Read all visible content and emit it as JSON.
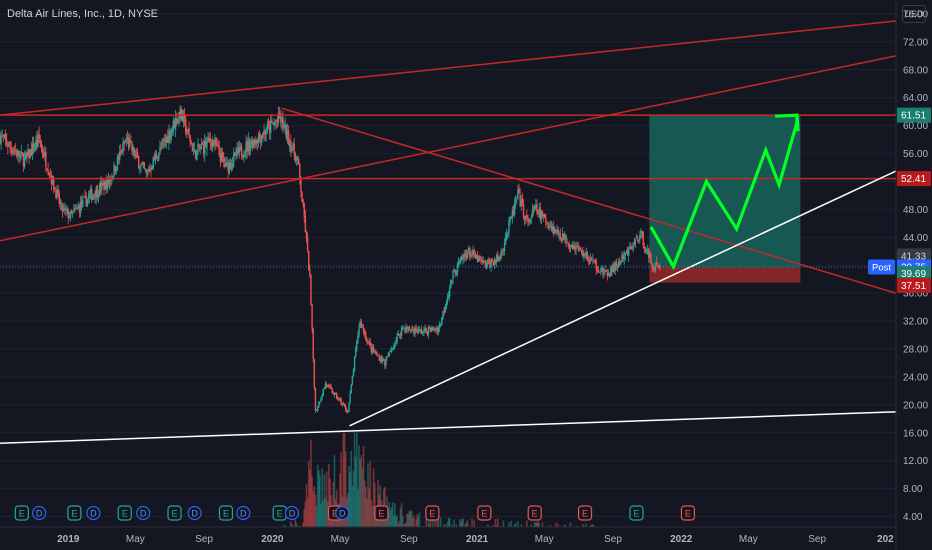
{
  "header": {
    "title": "Delta Air Lines, Inc., 1D, NYSE",
    "currency": "USD"
  },
  "colors": {
    "background": "#141722",
    "grid": "#1e2230",
    "candle_up": "#26a69a",
    "candle_down": "#ef5350",
    "trendline_red": "#c62828",
    "trendline_white": "#ffffff",
    "projection": "#00ff22",
    "target_zone": "#1a6f63",
    "stop_zone": "#9e2a2b",
    "post_label": "#2962ff"
  },
  "chart_data": {
    "type": "candlestick",
    "title": "Delta Air Lines, Inc., 1D, NYSE",
    "y_axis": {
      "ticks": [
        "76.00",
        "72.00",
        "68.00",
        "64.00",
        "60.00",
        "56.00",
        "52.00",
        "48.00",
        "44.00",
        "40.00",
        "36.00",
        "32.00",
        "28.00",
        "24.00",
        "20.00",
        "16.00",
        "12.00",
        "8.00",
        "4.00"
      ],
      "range": [
        2.5,
        78
      ]
    },
    "x_axis": {
      "ticks": [
        "2019",
        "May",
        "Sep",
        "2020",
        "May",
        "Sep",
        "2021",
        "May",
        "Sep",
        "2022",
        "May",
        "Sep",
        "202"
      ],
      "range": [
        "2018-09-01",
        "2023-01-20"
      ]
    },
    "price_path": [
      [
        "2018-09-01",
        58.5
      ],
      [
        "2018-10-15",
        55
      ],
      [
        "2018-11-10",
        58
      ],
      [
        "2018-12-20",
        48
      ],
      [
        "2019-01-05",
        47
      ],
      [
        "2019-02-10",
        50
      ],
      [
        "2019-03-15",
        52
      ],
      [
        "2019-04-15",
        58
      ],
      [
        "2019-05-20",
        53
      ],
      [
        "2019-06-25",
        58
      ],
      [
        "2019-07-20",
        62
      ],
      [
        "2019-08-15",
        56
      ],
      [
        "2019-09-15",
        58
      ],
      [
        "2019-10-10",
        54
      ],
      [
        "2019-11-01",
        56
      ],
      [
        "2019-12-01",
        58
      ],
      [
        "2020-01-15",
        61
      ],
      [
        "2020-02-15",
        55
      ],
      [
        "2020-02-28",
        46
      ],
      [
        "2020-03-08",
        38
      ],
      [
        "2020-03-18",
        19
      ],
      [
        "2020-04-05",
        23
      ],
      [
        "2020-05-01",
        20.5
      ],
      [
        "2020-05-15",
        19
      ],
      [
        "2020-06-05",
        32
      ],
      [
        "2020-06-25",
        28
      ],
      [
        "2020-07-20",
        26
      ],
      [
        "2020-08-20",
        31
      ],
      [
        "2020-09-25",
        30.5
      ],
      [
        "2020-10-25",
        31
      ],
      [
        "2020-11-20",
        39
      ],
      [
        "2020-12-15",
        42
      ],
      [
        "2021-01-15",
        40
      ],
      [
        "2021-02-10",
        41
      ],
      [
        "2021-03-15",
        50
      ],
      [
        "2021-04-01",
        46
      ],
      [
        "2021-04-15",
        48
      ],
      [
        "2021-05-20",
        45
      ],
      [
        "2021-06-20",
        43
      ],
      [
        "2021-07-20",
        41
      ],
      [
        "2021-08-20",
        38.5
      ],
      [
        "2021-09-20",
        41
      ],
      [
        "2021-10-20",
        44.5
      ],
      [
        "2021-11-10",
        40
      ],
      [
        "2021-11-24",
        39.75
      ]
    ],
    "volume_path": [
      [
        "2018-09-01",
        1.5
      ],
      [
        "2019-06-01",
        1.5
      ],
      [
        "2020-01-15",
        1.8
      ],
      [
        "2020-02-25",
        3
      ],
      [
        "2020-03-10",
        10.5
      ],
      [
        "2020-04-10",
        8
      ],
      [
        "2020-05-15",
        12.5
      ],
      [
        "2020-06-15",
        10
      ],
      [
        "2020-07-15",
        6
      ],
      [
        "2020-09-01",
        3.5
      ],
      [
        "2020-11-15",
        2.8
      ],
      [
        "2021-03-15",
        2.5
      ],
      [
        "2021-11-24",
        1.6
      ]
    ],
    "earnings_markers": {
      "E": [
        "2018-10-10",
        "2019-01-12",
        "2019-04-12",
        "2019-07-10",
        "2019-10-10",
        "2020-01-14",
        "2020-04-22",
        "2020-07-14",
        "2020-10-13",
        "2021-01-14",
        "2021-04-14",
        "2021-07-13",
        "2021-10-13",
        "2022-01-13"
      ],
      "D": [
        "2018-11-10",
        "2019-02-15",
        "2019-05-15",
        "2019-08-15",
        "2019-11-10",
        "2020-02-05",
        "2020-05-05"
      ]
    },
    "levels": {
      "last": {
        "value": 39.75,
        "label": "39.75",
        "tag": "Post"
      },
      "entry": {
        "value": 39.69,
        "label": "39.69"
      },
      "target": {
        "value": 61.51,
        "label": "61.51"
      },
      "resistance": {
        "value": 52.41,
        "label": "52.41"
      },
      "stop": {
        "value": 37.51,
        "label": "37.51"
      },
      "recent_high": {
        "value": 41.33,
        "label": "41.33"
      }
    },
    "horizontal_lines": [
      61.51,
      52.41
    ],
    "red_trendlines": [
      {
        "from": [
          "2018-09-01",
          61.5
        ],
        "to": [
          "2023-01-20",
          75
        ]
      },
      {
        "from": [
          "2018-09-01",
          43.5
        ],
        "to": [
          "2023-01-20",
          70
        ]
      },
      {
        "from": [
          "2020-01-17",
          62.5
        ],
        "to": [
          "2023-01-20",
          36
        ]
      }
    ],
    "white_trendlines": [
      {
        "from": [
          "2018-09-01",
          14.5
        ],
        "to": [
          "2023-01-20",
          19
        ]
      },
      {
        "from": [
          "2020-05-18",
          17
        ],
        "to": [
          "2023-01-20",
          53.5
        ]
      }
    ],
    "target_zone": {
      "from": "2021-11-05",
      "to": "2022-08-02",
      "top": 61.51,
      "bottom": 39.69
    },
    "stop_zone": {
      "from": "2021-11-05",
      "to": "2022-08-02",
      "top": 39.69,
      "bottom": 37.51
    },
    "projection_path": [
      [
        "2021-11-08",
        45.5
      ],
      [
        "2021-12-18",
        39.8
      ],
      [
        "2022-02-15",
        52
      ],
      [
        "2022-04-10",
        45.2
      ],
      [
        "2022-06-01",
        56.5
      ],
      [
        "2022-06-25",
        51.5
      ],
      [
        "2022-07-27",
        60.5
      ],
      [
        "2022-07-27",
        61.5
      ]
    ]
  }
}
